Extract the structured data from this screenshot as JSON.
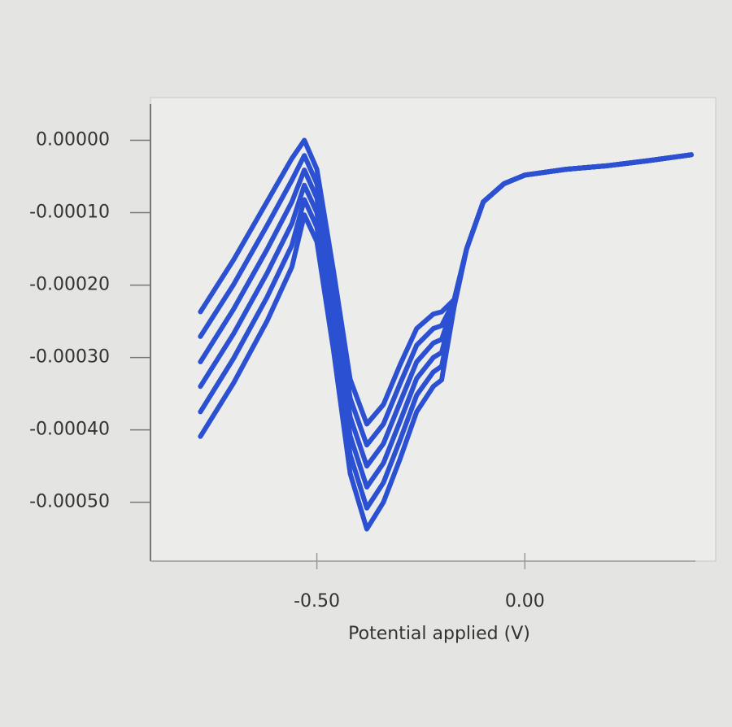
{
  "chart_data": {
    "type": "line",
    "xlabel": "Potential applied (V)",
    "x": [
      -0.78,
      -0.7,
      -0.62,
      -0.56,
      -0.53,
      -0.5,
      -0.46,
      -0.42,
      -0.38,
      -0.34,
      -0.3,
      -0.26,
      -0.22,
      -0.2,
      -0.17,
      -0.14,
      -0.1,
      -0.05,
      0.0,
      0.1,
      0.2,
      0.3,
      0.4
    ],
    "series": [
      {
        "color": "#2b50d2",
        "values": [
          -0.000237,
          -0.000165,
          -8.5e-05,
          -2.5e-05,
          0,
          -4e-05,
          -0.00018,
          -0.00033,
          -0.000392,
          -0.000365,
          -0.00031,
          -0.00026,
          -0.00024,
          -0.000237,
          -0.00022,
          -0.00015,
          -8.5e-05,
          -6e-05,
          -4.8e-05,
          -4e-05,
          -3.5e-05,
          -2.8e-05,
          -2e-05
        ]
      },
      {
        "color": "#2b50d2",
        "values": [
          -0.000271,
          -0.000199,
          -0.000118,
          -5.5e-05,
          -2.1e-05,
          -6e-05,
          -0.000202,
          -0.000356,
          -0.000421,
          -0.000392,
          -0.000336,
          -0.000283,
          -0.00026,
          -0.000256,
          -0.000222,
          -0.00015,
          -8.5e-05,
          -6e-05,
          -4.8e-05,
          -4e-05,
          -3.5e-05,
          -2.8e-05,
          -2e-05
        ]
      },
      {
        "color": "#2b50d2",
        "values": [
          -0.000306,
          -0.000233,
          -0.000151,
          -8.5e-05,
          -4.1e-05,
          -8e-05,
          -0.000224,
          -0.000382,
          -0.00045,
          -0.000419,
          -0.000362,
          -0.000306,
          -0.00028,
          -0.000275,
          -0.000224,
          -0.00015,
          -8.5e-05,
          -6e-05,
          -4.8e-05,
          -4e-05,
          -3.5e-05,
          -2.8e-05,
          -2e-05
        ]
      },
      {
        "color": "#2b50d2",
        "values": [
          -0.00034,
          -0.000267,
          -0.000184,
          -0.000115,
          -6.2e-05,
          -0.0001,
          -0.000246,
          -0.000408,
          -0.000479,
          -0.000446,
          -0.000388,
          -0.000329,
          -0.0003,
          -0.000293,
          -0.000226,
          -0.00015,
          -8.5e-05,
          -6e-05,
          -4.8e-05,
          -4e-05,
          -3.5e-05,
          -2.8e-05,
          -2e-05
        ]
      },
      {
        "color": "#2b50d2",
        "values": [
          -0.000375,
          -0.000301,
          -0.000217,
          -0.000145,
          -8.2e-05,
          -0.00012,
          -0.000268,
          -0.000434,
          -0.000508,
          -0.000473,
          -0.000414,
          -0.000352,
          -0.00032,
          -0.000312,
          -0.000228,
          -0.00015,
          -8.5e-05,
          -6e-05,
          -4.8e-05,
          -4e-05,
          -3.5e-05,
          -2.8e-05,
          -2e-05
        ]
      },
      {
        "color": "#2b50d2",
        "values": [
          -0.000409,
          -0.000335,
          -0.00025,
          -0.000175,
          -0.000103,
          -0.00014,
          -0.00029,
          -0.00046,
          -0.000537,
          -0.0005,
          -0.00044,
          -0.000375,
          -0.00034,
          -0.000331,
          -0.00023,
          -0.00015,
          -8.5e-05,
          -6e-05,
          -4.8e-05,
          -4e-05,
          -3.5e-05,
          -2.8e-05,
          -2e-05
        ]
      }
    ],
    "xlim": [
      -0.9,
      0.41
    ],
    "ylim": [
      -0.00057,
      5e-05
    ],
    "xticks": [
      {
        "value": -0.5,
        "label": "-0.50"
      },
      {
        "value": 0,
        "label": "0.00"
      }
    ],
    "yticks": [
      {
        "value": 0,
        "label": "0.00000"
      },
      {
        "value": -0.0001,
        "label": "-0.00010"
      },
      {
        "value": -0.0002,
        "label": "-0.00020"
      },
      {
        "value": -0.0003,
        "label": "-0.00030"
      },
      {
        "value": -0.0004,
        "label": "-0.00040"
      },
      {
        "value": -0.0005,
        "label": "-0.00050"
      }
    ],
    "grid": false
  }
}
